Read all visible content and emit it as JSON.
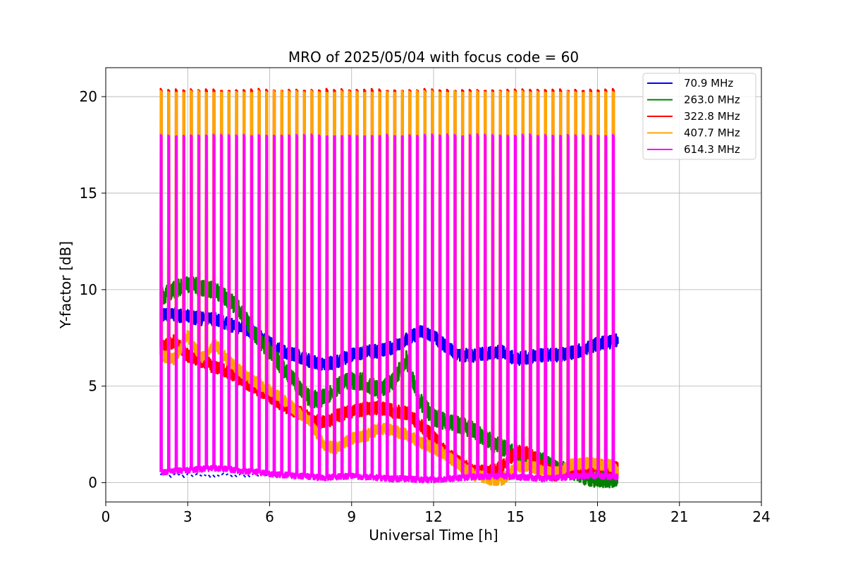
{
  "chart_data": {
    "type": "line",
    "title": "MRO of 2025/05/04 with focus code = 60",
    "xlabel": "Universal Time [h]",
    "ylabel": "Y-factor [dB]",
    "xlim": [
      0,
      24
    ],
    "ylim": [
      -1.0,
      21.5
    ],
    "x_ticks": [
      0,
      3,
      6,
      9,
      12,
      15,
      18,
      21,
      24
    ],
    "y_ticks": [
      0,
      5,
      10,
      15,
      20
    ],
    "grid": true,
    "legend_position": "top-right",
    "calibration_spikes": {
      "description_of_pattern": "periodic calibration pulses",
      "start_hour": 2.0,
      "end_hour": 18.55,
      "count": 61,
      "peak_db": {
        "322.8 MHz": 20.35,
        "407.7 MHz": 20.25,
        "614.3 MHz": 18.0
      }
    },
    "series": [
      {
        "name": " 70.9 MHz",
        "color": "#0000ff",
        "x": [
          2.0,
          2.5,
          3.0,
          3.5,
          4.0,
          4.5,
          5.0,
          5.5,
          6.0,
          6.5,
          7.0,
          7.5,
          8.0,
          8.5,
          9.0,
          9.5,
          10.0,
          10.5,
          11.0,
          11.5,
          12.0,
          12.5,
          13.0,
          13.5,
          14.0,
          14.5,
          15.0,
          15.5,
          16.0,
          16.5,
          17.0,
          17.5,
          18.0,
          18.5,
          18.75
        ],
        "y": [
          8.7,
          8.7,
          8.6,
          8.5,
          8.5,
          8.2,
          8.0,
          7.7,
          7.2,
          6.8,
          6.6,
          6.3,
          6.1,
          6.3,
          6.6,
          6.8,
          6.8,
          7.0,
          7.4,
          7.8,
          7.6,
          7.0,
          6.6,
          6.6,
          6.7,
          6.8,
          6.4,
          6.5,
          6.6,
          6.6,
          6.7,
          6.9,
          7.2,
          7.3,
          7.4
        ]
      },
      {
        "name": "263.0 MHz",
        "color": "#008000",
        "x": [
          2.0,
          2.5,
          3.0,
          3.5,
          4.0,
          4.5,
          5.0,
          5.5,
          6.0,
          6.5,
          7.0,
          7.5,
          8.0,
          8.5,
          9.0,
          9.5,
          10.0,
          10.5,
          11.0,
          11.5,
          12.0,
          12.5,
          13.0,
          13.5,
          14.0,
          14.5,
          15.0,
          15.5,
          16.0,
          16.5,
          17.0,
          17.5,
          18.0,
          18.5,
          18.75
        ],
        "y": [
          9.6,
          10.0,
          10.3,
          10.1,
          10.0,
          9.5,
          8.8,
          7.6,
          6.8,
          5.9,
          5.1,
          4.3,
          4.4,
          5.0,
          5.3,
          5.2,
          4.8,
          5.2,
          6.4,
          4.2,
          3.4,
          3.1,
          3.0,
          2.7,
          2.2,
          1.8,
          1.5,
          1.3,
          1.1,
          0.7,
          0.6,
          0.3,
          0.2,
          0.2,
          0.3
        ]
      },
      {
        "name": "322.8 MHz",
        "color": "#ff0000",
        "x": [
          2.0,
          2.5,
          3.0,
          3.5,
          4.0,
          4.5,
          5.0,
          5.5,
          6.0,
          6.5,
          7.0,
          7.5,
          8.0,
          8.5,
          9.0,
          9.5,
          10.0,
          10.5,
          11.0,
          11.5,
          12.0,
          12.5,
          13.0,
          13.5,
          14.0,
          14.5,
          15.0,
          15.5,
          16.0,
          16.5,
          17.0,
          17.5,
          18.0,
          18.5,
          18.75
        ],
        "y": [
          7.0,
          7.3,
          6.6,
          6.3,
          6.0,
          5.7,
          5.3,
          4.9,
          4.5,
          4.0,
          3.7,
          3.3,
          3.1,
          3.5,
          3.7,
          3.8,
          3.9,
          3.7,
          3.6,
          3.0,
          2.4,
          1.5,
          1.0,
          0.6,
          0.5,
          0.8,
          1.6,
          1.5,
          0.8,
          0.4,
          0.6,
          0.8,
          0.9,
          0.8,
          0.7
        ]
      },
      {
        "name": "407.7 MHz",
        "color": "#ffa500",
        "x": [
          2.0,
          2.5,
          3.0,
          3.5,
          4.0,
          4.5,
          5.0,
          5.5,
          6.0,
          6.5,
          7.0,
          7.5,
          8.0,
          8.5,
          9.0,
          9.5,
          10.0,
          10.5,
          11.0,
          11.5,
          12.0,
          12.5,
          13.0,
          13.5,
          14.0,
          14.5,
          15.0,
          15.5,
          16.0,
          16.5,
          17.0,
          17.5,
          18.0,
          18.5,
          18.75
        ],
        "y": [
          6.6,
          6.4,
          7.6,
          6.5,
          7.2,
          6.3,
          5.7,
          5.2,
          4.8,
          4.3,
          3.7,
          3.1,
          1.9,
          1.8,
          2.3,
          2.4,
          2.8,
          2.7,
          2.5,
          2.1,
          1.8,
          1.4,
          0.8,
          0.4,
          0.2,
          0.1,
          0.8,
          0.9,
          0.6,
          0.5,
          0.9,
          1.0,
          1.0,
          0.9,
          0.5
        ]
      },
      {
        "name": "614.3 MHz",
        "color": "#ff00ff",
        "x": [
          2.0,
          2.5,
          3.0,
          3.5,
          4.0,
          4.5,
          5.0,
          5.5,
          6.0,
          6.5,
          7.0,
          7.5,
          8.0,
          8.5,
          9.0,
          9.5,
          10.0,
          10.5,
          11.0,
          11.5,
          12.0,
          12.5,
          13.0,
          13.5,
          14.0,
          14.5,
          15.0,
          15.5,
          16.0,
          16.5,
          17.0,
          17.5,
          18.0,
          18.5,
          18.75
        ],
        "y": [
          0.55,
          0.6,
          0.65,
          0.7,
          0.75,
          0.7,
          0.6,
          0.55,
          0.45,
          0.4,
          0.35,
          0.3,
          0.25,
          0.3,
          0.35,
          0.3,
          0.25,
          0.2,
          0.2,
          0.15,
          0.15,
          0.2,
          0.25,
          0.3,
          0.3,
          0.35,
          0.3,
          0.25,
          0.2,
          0.25,
          0.3,
          0.35,
          0.35,
          0.3,
          0.3
        ]
      }
    ]
  }
}
